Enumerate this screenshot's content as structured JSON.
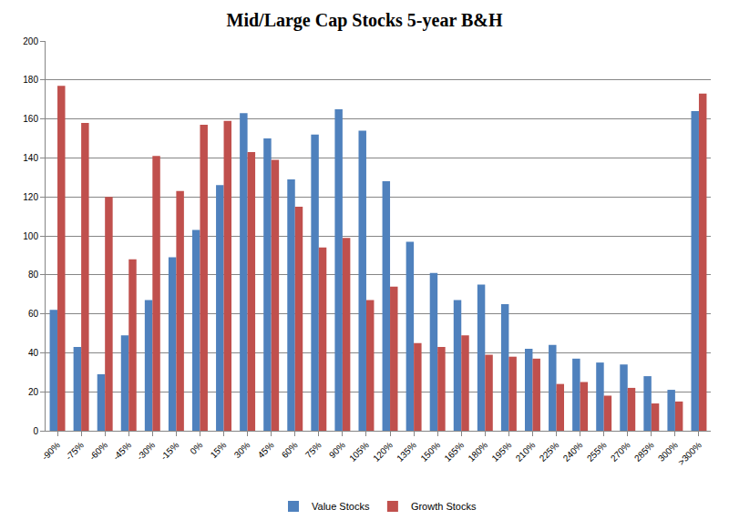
{
  "chart_data": {
    "type": "bar",
    "title": "Mid/Large Cap Stocks 5-year B&H",
    "categories": [
      "-90%",
      "-75%",
      "-60%",
      "-45%",
      "-30%",
      "-15%",
      "0%",
      "15%",
      "30%",
      "45%",
      "60%",
      "75%",
      "90%",
      "105%",
      "120%",
      "135%",
      "150%",
      "165%",
      "180%",
      "195%",
      "210%",
      "225%",
      "240%",
      "255%",
      "270%",
      "285%",
      "300%",
      ">300%"
    ],
    "series": [
      {
        "name": "Value Stocks",
        "color": "#4f81bd",
        "values": [
          62,
          43,
          29,
          49,
          67,
          89,
          103,
          126,
          163,
          150,
          129,
          152,
          165,
          154,
          128,
          97,
          81,
          67,
          75,
          65,
          42,
          44,
          37,
          35,
          34,
          28,
          21,
          164
        ]
      },
      {
        "name": "Growth Stocks",
        "color": "#c0504d",
        "values": [
          177,
          158,
          120,
          88,
          141,
          123,
          157,
          159,
          143,
          139,
          115,
          94,
          99,
          67,
          74,
          45,
          43,
          49,
          39,
          38,
          37,
          24,
          25,
          18,
          22,
          14,
          15,
          173
        ]
      }
    ],
    "ylim": [
      0,
      200
    ],
    "yticks": [
      0,
      20,
      40,
      60,
      80,
      100,
      120,
      140,
      160,
      180,
      200
    ],
    "grid": true,
    "legend": "bottom"
  }
}
